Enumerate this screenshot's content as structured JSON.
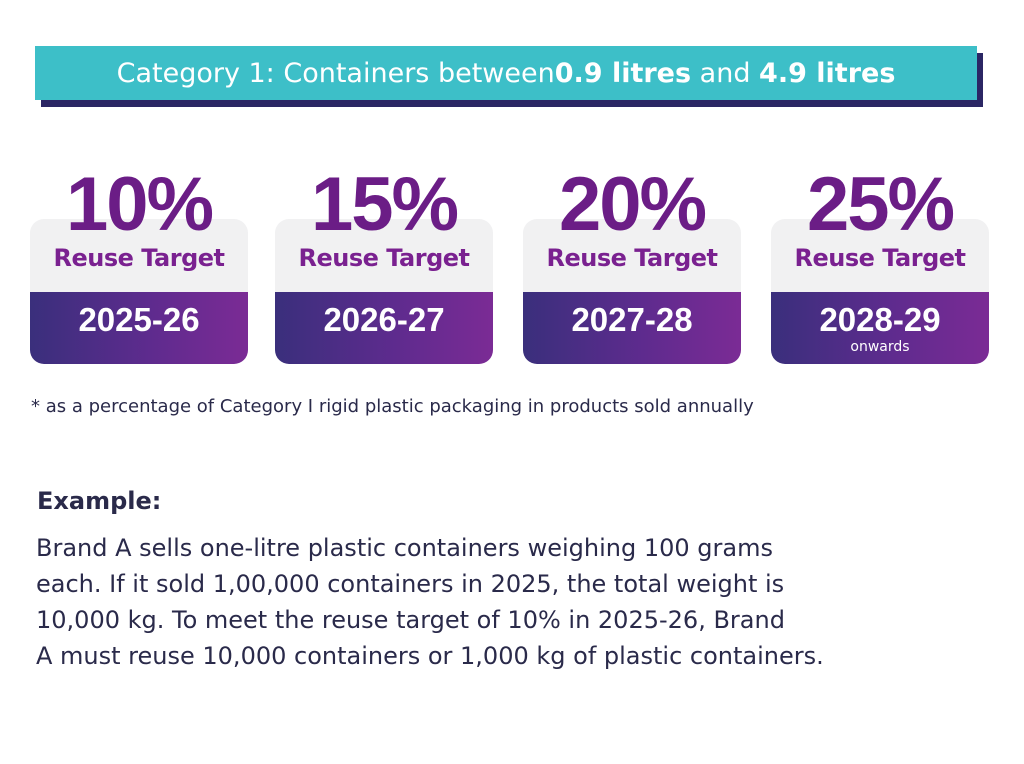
{
  "banner": {
    "prefix": "Category 1: Containers between ",
    "v1": "0.9 litres",
    "mid": " and ",
    "v2": "4.9 litres"
  },
  "cards": [
    {
      "percent": "10%",
      "label": "Reuse Target",
      "year": "2025-26",
      "note": ""
    },
    {
      "percent": "15%",
      "label": "Reuse Target",
      "year": "2026-27",
      "note": ""
    },
    {
      "percent": "20%",
      "label": "Reuse Target",
      "year": "2027-28",
      "note": ""
    },
    {
      "percent": "25%",
      "label": "Reuse Target",
      "year": "2028-29",
      "note": "onwards"
    }
  ],
  "footnote": "* as a percentage of Category I rigid plastic packaging in products sold annually",
  "example": {
    "title": "Example:",
    "lines": [
      "Brand A sells one-litre plastic containers weighing 100 grams",
      "each. If it sold 1,00,000 containers in 2025, the total weight is",
      "10,000 kg. To meet the reuse target of 10% in 2025-26, Brand",
      "A must reuse 10,000 containers or 1,000 kg of plastic containers."
    ]
  },
  "colors": {
    "banner": "#3dbfc8",
    "banner_shadow": "#2b2664",
    "percent_text": "#6b1d86",
    "card_bottom_start": "#3a2f7c",
    "card_bottom_end": "#7b2b95"
  }
}
